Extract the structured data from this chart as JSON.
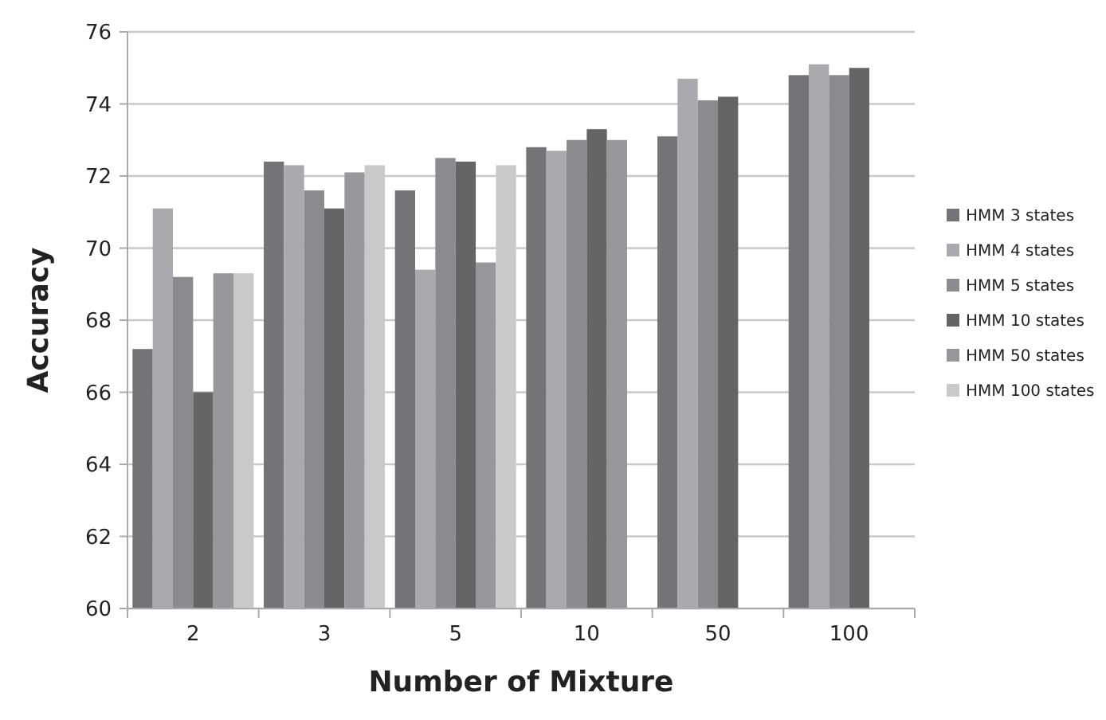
{
  "chart_data": {
    "type": "bar",
    "xlabel": "Number of Mixture",
    "ylabel": "Accuracy",
    "categories": [
      "2",
      "3",
      "5",
      "10",
      "50",
      "100"
    ],
    "series": [
      {
        "name": "HMM 3 states",
        "color": "#737478",
        "values": [
          67.2,
          72.4,
          71.6,
          72.8,
          73.1,
          74.8
        ]
      },
      {
        "name": "HMM 4 states",
        "color": "#a9aaad",
        "values": [
          71.1,
          72.3,
          69.4,
          72.7,
          74.7,
          75.1
        ]
      },
      {
        "name": "HMM 5 states",
        "color": "#8a8b8f",
        "values": [
          69.2,
          71.6,
          72.5,
          73.0,
          74.1,
          74.8
        ]
      },
      {
        "name": "HMM 10 states",
        "color": "#656568",
        "values": [
          66.0,
          71.1,
          72.4,
          73.3,
          74.2,
          75.0
        ]
      },
      {
        "name": "HMM 50 states",
        "color": "#97989b",
        "values": [
          69.3,
          72.1,
          69.6,
          73.0,
          null,
          null
        ]
      },
      {
        "name": "HMM 100 states",
        "color": "#c8c9cb",
        "values": [
          69.3,
          72.3,
          72.3,
          null,
          null,
          null
        ]
      }
    ],
    "ylim": [
      60,
      76
    ],
    "yticks": [
      60,
      62,
      64,
      66,
      68,
      70,
      72,
      74,
      76
    ],
    "grid": "y",
    "legend": "right"
  }
}
